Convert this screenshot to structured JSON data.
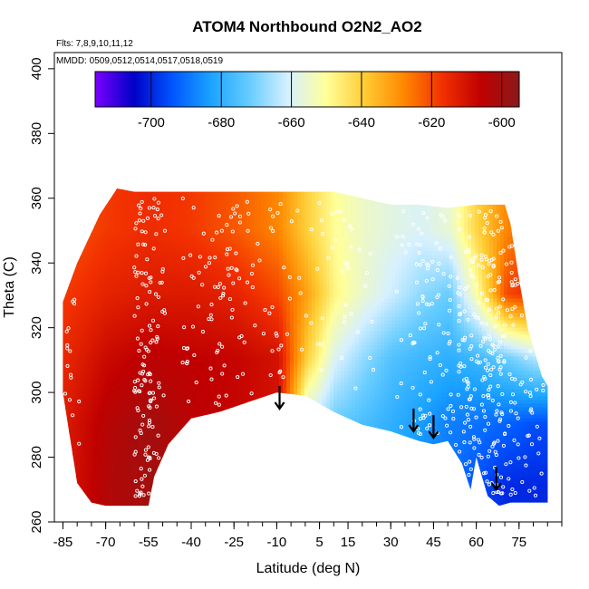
{
  "chart_data": {
    "type": "heatmap",
    "title": "ATOM4 Northbound O2N2_AO2",
    "subtitle_flights": "Flts: 7,8,9,10,11,12",
    "subtitle_dates": "MMDD: 0509,0512,0514,0517,0518,0519",
    "xlabel": "Latitude (deg N)",
    "ylabel": "Theta (C)",
    "xlim": [
      -88,
      90
    ],
    "ylim": [
      260,
      405
    ],
    "x_ticks": [
      -85,
      -70,
      -55,
      -40,
      -25,
      -10,
      5,
      15,
      30,
      45,
      60,
      75
    ],
    "y_ticks": [
      260,
      280,
      300,
      320,
      340,
      360,
      380,
      400
    ],
    "colorbar": {
      "range": [
        -716,
        -595
      ],
      "ticks": [
        -700,
        -680,
        -660,
        -640,
        -620,
        -600
      ],
      "colors": [
        "#7b00ff",
        "#0000c8",
        "#0055ff",
        "#1aa3ff",
        "#66ccff",
        "#d6f0ff",
        "#ffff99",
        "#ffcc33",
        "#ff8800",
        "#f23000",
        "#c00000",
        "#8b1a1a"
      ]
    },
    "field_grid": {
      "x": [
        -85,
        -70,
        -55,
        -40,
        -25,
        -10,
        0,
        10,
        20,
        30,
        40,
        50,
        60,
        70,
        80
      ],
      "y": [
        270,
        290,
        310,
        330,
        350
      ],
      "z": [
        [
          -612,
          -603,
          -600,
          -605,
          -608,
          -612,
          -662,
          -672,
          -678,
          -682,
          -686,
          -690,
          -695,
          -700,
          -700
        ],
        [
          -612,
          -604,
          -600,
          -605,
          -607,
          -610,
          -662,
          -672,
          -676,
          -680,
          -684,
          -688,
          -690,
          -692,
          -695
        ],
        [
          -615,
          -608,
          -605,
          -606,
          -607,
          -610,
          -640,
          -660,
          -668,
          -675,
          -678,
          -680,
          -678,
          -672,
          -665
        ],
        [
          -618,
          -614,
          -612,
          -612,
          -614,
          -620,
          -632,
          -648,
          -656,
          -662,
          -668,
          -672,
          -650,
          -620,
          -615
        ],
        [
          -622,
          -618,
          -616,
          -618,
          -622,
          -628,
          -640,
          -650,
          -655,
          -658,
          -660,
          -656,
          -640,
          -628,
          -620
        ]
      ]
    },
    "data_region": {
      "top": [
        [
          -85,
          328
        ],
        [
          -80,
          340
        ],
        [
          -72,
          355
        ],
        [
          -66,
          363
        ],
        [
          -60,
          362
        ],
        [
          -50,
          362
        ],
        [
          -40,
          362
        ],
        [
          -20,
          362
        ],
        [
          0,
          362
        ],
        [
          10,
          362
        ],
        [
          20,
          360
        ],
        [
          30,
          358
        ],
        [
          40,
          358
        ],
        [
          50,
          357
        ],
        [
          60,
          358
        ],
        [
          70,
          358
        ],
        [
          72,
          352
        ],
        [
          75,
          335
        ],
        [
          78,
          320
        ],
        [
          83,
          305
        ],
        [
          85,
          302
        ]
      ],
      "bottom": [
        [
          -85,
          300
        ],
        [
          -80,
          272
        ],
        [
          -75,
          266
        ],
        [
          -70,
          265
        ],
        [
          -55,
          265
        ],
        [
          -53,
          274
        ],
        [
          -48,
          284
        ],
        [
          -40,
          292
        ],
        [
          -30,
          294
        ],
        [
          -20,
          297
        ],
        [
          -10,
          300
        ],
        [
          0,
          299
        ],
        [
          10,
          294
        ],
        [
          20,
          290
        ],
        [
          30,
          288
        ],
        [
          40,
          285
        ],
        [
          45,
          284
        ],
        [
          50,
          285
        ],
        [
          55,
          278
        ],
        [
          58,
          270
        ],
        [
          60,
          280
        ],
        [
          64,
          268
        ],
        [
          68,
          265
        ],
        [
          72,
          266
        ],
        [
          78,
          266
        ],
        [
          85,
          266
        ]
      ]
    },
    "arrows": [
      {
        "lat": -9,
        "theta": 297
      },
      {
        "lat": 38,
        "theta": 290
      },
      {
        "lat": 45,
        "theta": 288
      },
      {
        "lat": 67,
        "theta": 272
      }
    ]
  }
}
